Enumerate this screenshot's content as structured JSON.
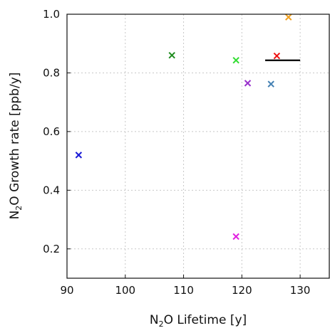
{
  "chart_data": {
    "type": "scatter",
    "title": "",
    "xlabel": {
      "prefix": "N",
      "sub": "2",
      "suffix": "O  Lifetime [y]"
    },
    "ylabel": {
      "prefix": "N",
      "sub": "2",
      "suffix": "O  Growth rate [ppb/y]"
    },
    "xlim": [
      90,
      135
    ],
    "ylim": [
      0.1,
      1.0
    ],
    "xticks": [
      90,
      100,
      110,
      120,
      130
    ],
    "yticks": [
      0.2,
      0.4,
      0.6,
      0.8,
      1.0
    ],
    "xtick_labels": [
      "90",
      "100",
      "110",
      "120",
      "130"
    ],
    "ytick_labels": [
      "0.2",
      "0.4",
      "0.6",
      "0.8",
      "1.0"
    ],
    "grid": true,
    "marker": "x",
    "points": [
      {
        "x": 92,
        "y": 0.52,
        "color": "#1a1ad6"
      },
      {
        "x": 108,
        "y": 0.86,
        "color": "#1e8c1e"
      },
      {
        "x": 119,
        "y": 0.843,
        "color": "#33dd33"
      },
      {
        "x": 119,
        "y": 0.242,
        "color": "#e01ee0"
      },
      {
        "x": 121,
        "y": 0.765,
        "color": "#9932cc"
      },
      {
        "x": 125,
        "y": 0.762,
        "color": "#4682b4"
      },
      {
        "x": 126,
        "y": 0.858,
        "color": "#ee1111"
      },
      {
        "x": 128,
        "y": 0.99,
        "color": "#f0a020"
      }
    ],
    "reference_line": {
      "x": [
        124,
        130
      ],
      "y": 0.843,
      "color": "#000000"
    }
  }
}
